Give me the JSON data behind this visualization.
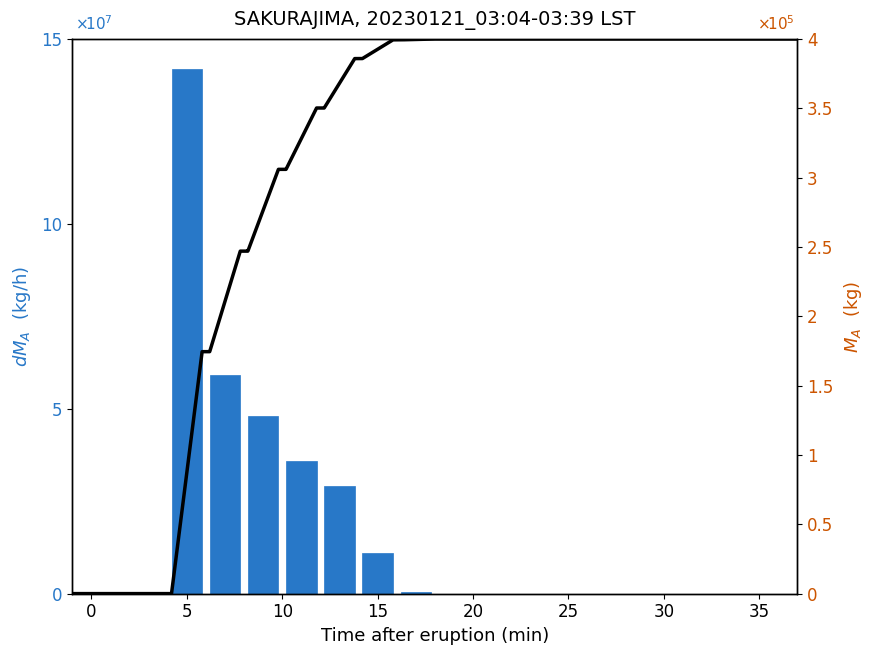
{
  "title": "SAKURAJIMA, 20230121_03:04-03:39 LST",
  "xlabel": "Time after eruption (min)",
  "ylabel_left": "dM_A (kg/h)",
  "ylabel_right": "M_A (kg)",
  "bar_centers": [
    5,
    7,
    9,
    11,
    13,
    15,
    17
  ],
  "bar_heights": [
    142000000.0,
    59000000.0,
    48000000.0,
    36000000.0,
    29000000.0,
    11000000.0,
    500000.0
  ],
  "bar_width": 1.6,
  "bar_color": "#2878C8",
  "bar_edge_color": "#2878C8",
  "xlim": [
    -1,
    37
  ],
  "ylim_left": [
    0,
    150000000.0
  ],
  "ylim_right": [
    0,
    400000.0
  ],
  "xticks": [
    0,
    5,
    10,
    15,
    20,
    25,
    30,
    35
  ],
  "yticks_left": [
    0,
    50000000.0,
    100000000.0,
    150000000.0
  ],
  "yticks_right": [
    0,
    50000.0,
    100000.0,
    150000.0,
    200000.0,
    250000.0,
    300000.0,
    350000.0,
    400000.0
  ],
  "line_color": "#000000",
  "line_width": 2.5,
  "title_fontsize": 14,
  "label_fontsize": 13,
  "tick_fontsize": 12,
  "left_label_color": "#2878C8",
  "right_label_color": "#CC5500",
  "background_color": "#ffffff",
  "figsize": [
    8.75,
    6.56
  ],
  "dpi": 100
}
